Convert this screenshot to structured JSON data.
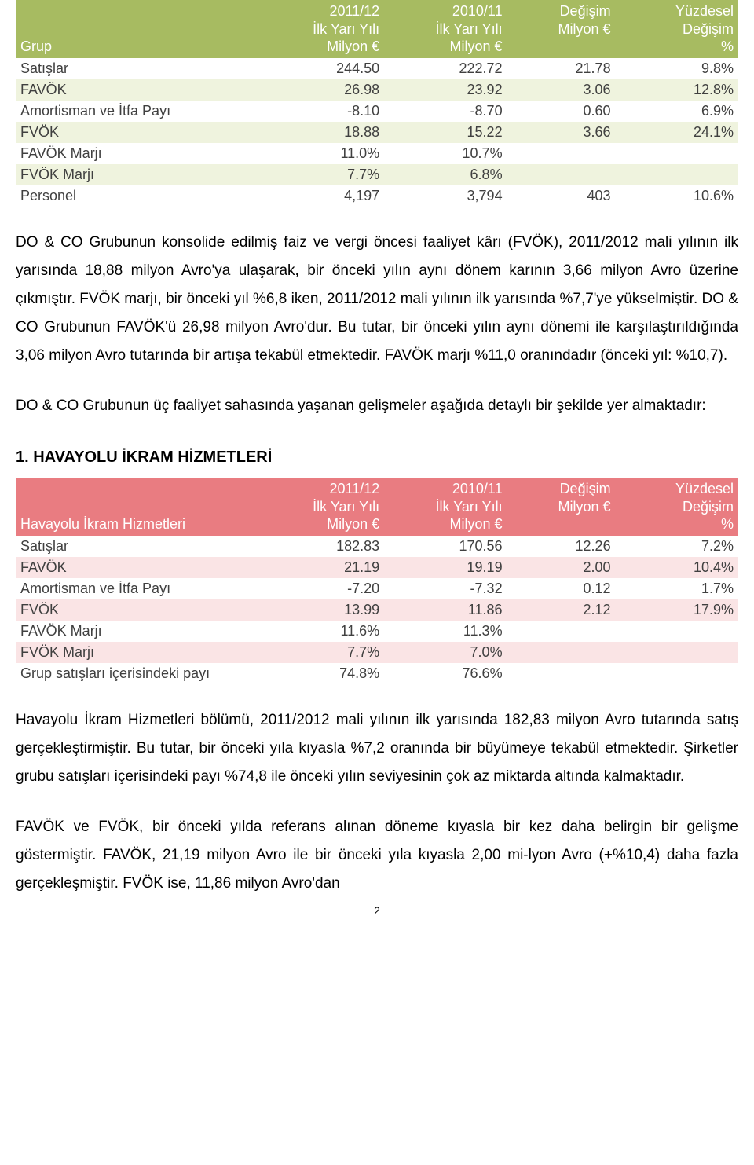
{
  "table1": {
    "type": "table",
    "header_bg": "#a7bb61",
    "stripe_bg": "#eff3de",
    "text_color": "#404040",
    "columns": [
      {
        "l1": "",
        "l2": "",
        "l3": "Grup"
      },
      {
        "l1": "2011/12",
        "l2": "İlk Yarı Yılı",
        "l3": "Milyon €"
      },
      {
        "l1": "2010/11",
        "l2": "İlk Yarı Yılı",
        "l3": "Milyon €"
      },
      {
        "l1": "",
        "l2": "Değişim",
        "l3": "Milyon €"
      },
      {
        "l1": "Yüzdesel",
        "l2": "Değişim",
        "l3": "%"
      }
    ],
    "rows": [
      {
        "c0": "Satışlar",
        "c1": "244.50",
        "c2": "222.72",
        "c3": "21.78",
        "c4": "9.8%",
        "striped": false
      },
      {
        "c0": "FAVÖK",
        "c1": "26.98",
        "c2": "23.92",
        "c3": "3.06",
        "c4": "12.8%",
        "striped": true
      },
      {
        "c0": "Amortisman ve İtfa Payı",
        "c1": "-8.10",
        "c2": "-8.70",
        "c3": "0.60",
        "c4": "6.9%",
        "striped": false
      },
      {
        "c0": "FVÖK",
        "c1": "18.88",
        "c2": "15.22",
        "c3": "3.66",
        "c4": "24.1%",
        "striped": true
      },
      {
        "c0": "FAVÖK Marjı",
        "c1": "11.0%",
        "c2": "10.7%",
        "c3": "",
        "c4": "",
        "striped": false
      },
      {
        "c0": "FVÖK Marjı",
        "c1": "7.7%",
        "c2": "6.8%",
        "c3": "",
        "c4": "",
        "striped": true
      },
      {
        "c0": "Personel",
        "c1": "4,197",
        "c2": "3,794",
        "c3": "403",
        "c4": "10.6%",
        "striped": false
      }
    ]
  },
  "para1": "DO & CO Grubunun konsolide edilmiş faiz ve vergi öncesi faaliyet kârı (FVÖK), 2011/2012 mali yılının ilk yarısında 18,88 milyon Avro'ya ulaşarak, bir önceki yılın aynı dönem karının 3,66 milyon Avro üzerine çıkmıştır. FVÖK marjı, bir önceki yıl %6,8 iken, 2011/2012 mali yılının ilk yarısında %7,7'ye yükselmiştir. DO & CO Grubunun FAVÖK'ü 26,98 milyon Avro'dur. Bu tutar, bir önceki yılın aynı dönemi ile karşılaştırıldığında 3,06 milyon Avro tutarında bir artışa tekabül etmektedir. FAVÖK marjı %11,0 oranındadır (önceki yıl: %10,7).",
  "para2": "DO & CO Grubunun üç faaliyet sahasında yaşanan gelişmeler aşağıda detaylı bir şekilde yer almaktadır:",
  "heading1": "1. HAVAYOLU İKRAM HİZMETLERİ",
  "table2": {
    "type": "table",
    "header_bg": "#e97c81",
    "stripe_bg": "#fae4e5",
    "text_color": "#404040",
    "columns": [
      {
        "l1": "",
        "l2": "",
        "l3": "Havayolu İkram Hizmetleri"
      },
      {
        "l1": "2011/12",
        "l2": "İlk Yarı Yılı",
        "l3": "Milyon €"
      },
      {
        "l1": "2010/11",
        "l2": "İlk Yarı Yılı",
        "l3": "Milyon €"
      },
      {
        "l1": "",
        "l2": "Değişim",
        "l3": "Milyon €"
      },
      {
        "l1": "Yüzdesel",
        "l2": "Değişim",
        "l3": "%"
      }
    ],
    "rows": [
      {
        "c0": "Satışlar",
        "c1": "182.83",
        "c2": "170.56",
        "c3": "12.26",
        "c4": "7.2%",
        "striped": false
      },
      {
        "c0": "FAVÖK",
        "c1": "21.19",
        "c2": "19.19",
        "c3": "2.00",
        "c4": "10.4%",
        "striped": true
      },
      {
        "c0": "Amortisman ve İtfa Payı",
        "c1": "-7.20",
        "c2": "-7.32",
        "c3": "0.12",
        "c4": "1.7%",
        "striped": false
      },
      {
        "c0": "FVÖK",
        "c1": "13.99",
        "c2": "11.86",
        "c3": "2.12",
        "c4": "17.9%",
        "striped": true
      },
      {
        "c0": "FAVÖK Marjı",
        "c1": "11.6%",
        "c2": "11.3%",
        "c3": "",
        "c4": "",
        "striped": false
      },
      {
        "c0": "FVÖK Marjı",
        "c1": "7.7%",
        "c2": "7.0%",
        "c3": "",
        "c4": "",
        "striped": true
      },
      {
        "c0": "Grup satışları içerisindeki payı",
        "c1": "74.8%",
        "c2": "76.6%",
        "c3": "",
        "c4": "",
        "striped": false
      }
    ]
  },
  "para3": "Havayolu İkram Hizmetleri bölümü, 2011/2012 mali yılının ilk yarısında 182,83 milyon Avro tutarında satış gerçekleştirmiştir. Bu tutar, bir önceki yıla kıyasla %7,2 oranında bir büyümeye tekabül etmektedir. Şirketler grubu satışları içerisindeki payı %74,8 ile önceki yılın seviyesinin çok az miktarda altında kalmaktadır.",
  "para4": "FAVÖK ve FVÖK, bir önceki yılda referans alınan döneme kıyasla bir kez daha belirgin bir gelişme göstermiştir. FAVÖK, 21,19 milyon Avro ile bir önceki yıla kıyasla 2,00 mi-lyon Avro (+%10,4) daha fazla gerçekleşmiştir. FVÖK ise, 11,86 milyon Avro'dan",
  "page_number": "2"
}
